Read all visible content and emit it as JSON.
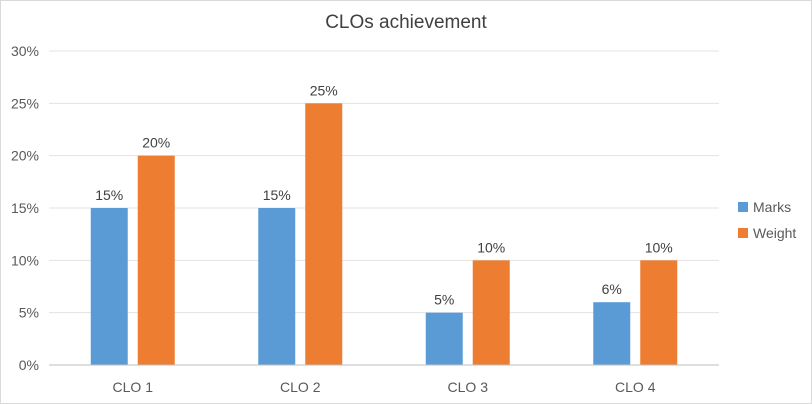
{
  "chart_data": {
    "type": "bar",
    "title": "CLOs achievement",
    "categories": [
      "CLO 1",
      "CLO 2",
      "CLO 3",
      "CLO 4"
    ],
    "series": [
      {
        "name": "Marks",
        "values": [
          15,
          15,
          5,
          6
        ],
        "color": "#5b9bd5"
      },
      {
        "name": "Weight",
        "values": [
          20,
          25,
          10,
          10
        ],
        "color": "#ed7d31"
      }
    ],
    "ylim": [
      0,
      30
    ],
    "yticks": [
      0,
      5,
      10,
      15,
      20,
      25,
      30
    ],
    "value_suffix": "%",
    "grid": true,
    "legend_position": "right",
    "data_labels": true
  }
}
